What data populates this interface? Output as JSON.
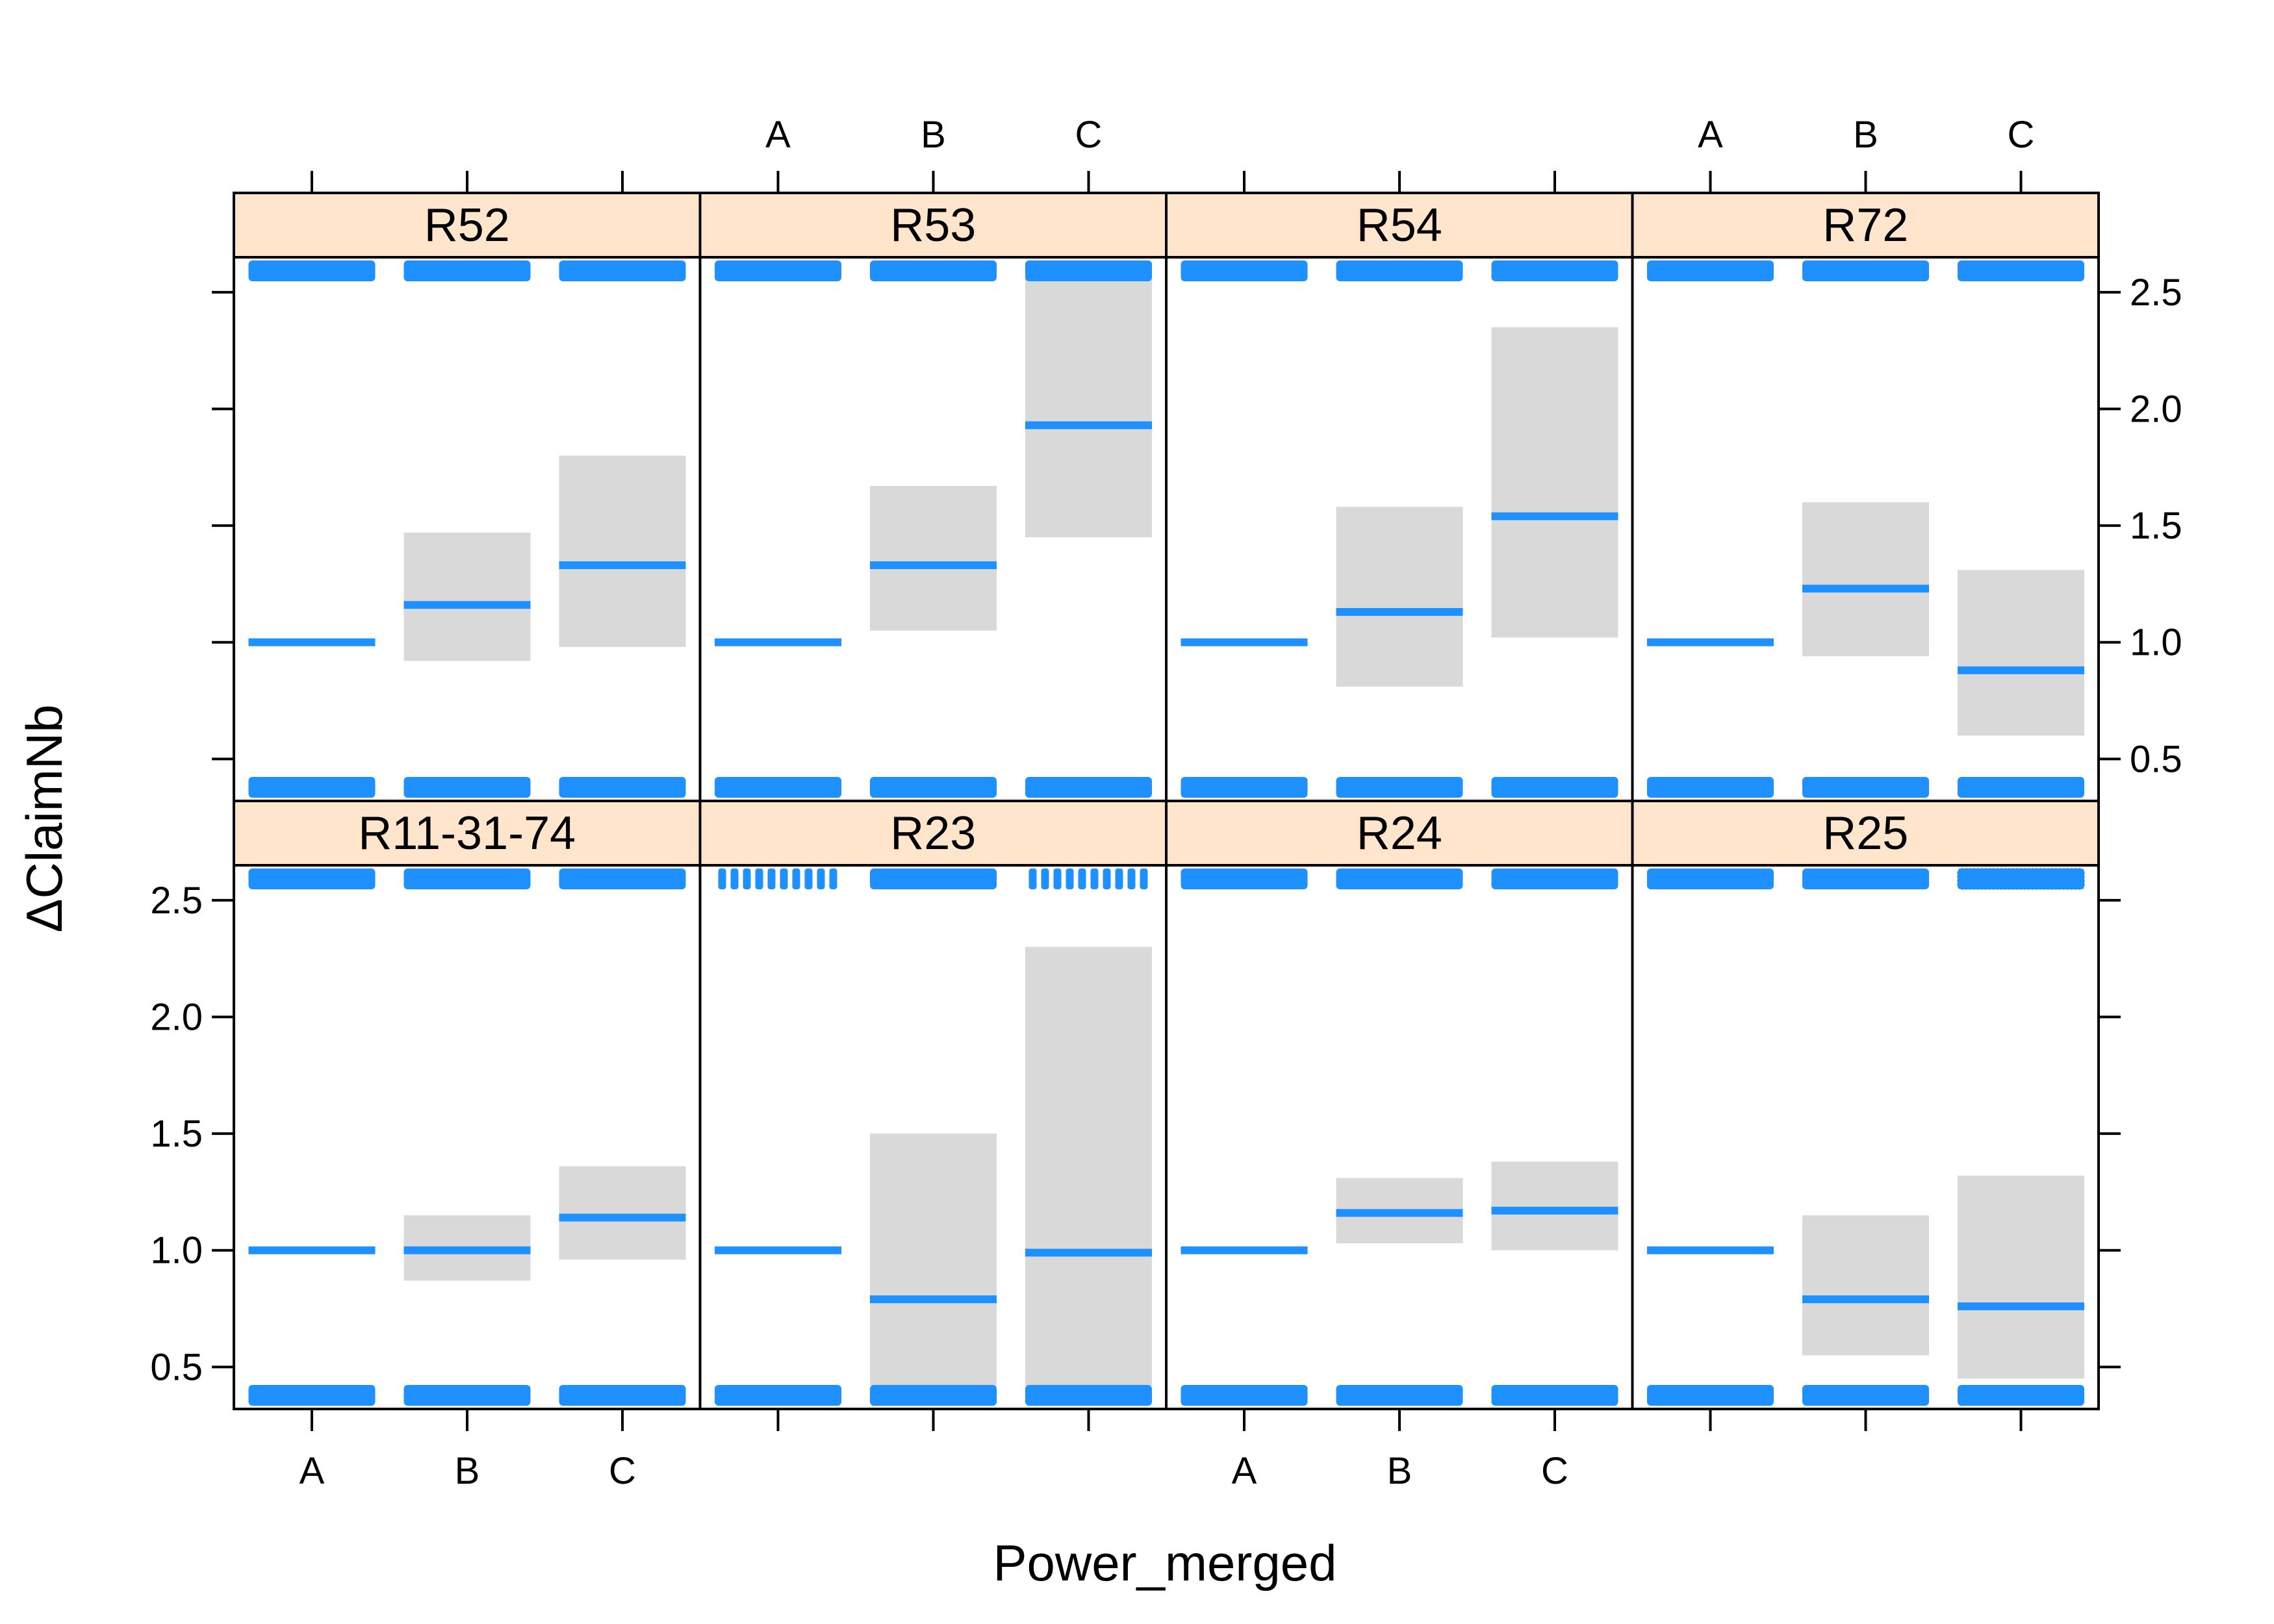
{
  "chart_data": {
    "type": "lattice-bar",
    "xlabel": "Power_merged",
    "ylabel": "ΔClaimNb",
    "ylim": [
      0.32,
      2.65
    ],
    "y_ticks": [
      0.5,
      1.0,
      1.5,
      2.0,
      2.5
    ],
    "y_tick_labels": [
      "0.5",
      "1.0",
      "1.5",
      "2.0",
      "2.5"
    ],
    "categories": [
      "A",
      "B",
      "C"
    ],
    "colors": {
      "estimate_line": "#1e90ff",
      "interval_band": "#d9d9d9",
      "strip_background": "#ffe5cc",
      "rug": "#1e90ff"
    },
    "panels": [
      {
        "label": "R11-31-74",
        "estimate": [
          1.0,
          1.0,
          1.14
        ],
        "lower": [
          null,
          0.87,
          0.96
        ],
        "upper": [
          null,
          1.15,
          1.36
        ],
        "rug_style": [
          "solid",
          "solid",
          "solid"
        ]
      },
      {
        "label": "R23",
        "estimate": [
          1.0,
          0.79,
          0.99
        ],
        "lower": [
          null,
          0.42,
          0.42
        ],
        "upper": [
          null,
          1.5,
          2.3
        ],
        "rug_style": [
          "dashed",
          "solid",
          "dashed"
        ]
      },
      {
        "label": "R24",
        "estimate": [
          1.0,
          1.16,
          1.17
        ],
        "lower": [
          null,
          1.03,
          1.0
        ],
        "upper": [
          null,
          1.31,
          1.38
        ],
        "rug_style": [
          "solid",
          "solid",
          "solid"
        ]
      },
      {
        "label": "R25",
        "estimate": [
          1.0,
          0.79,
          0.76
        ],
        "lower": [
          null,
          0.55,
          0.45
        ],
        "upper": [
          null,
          1.15,
          1.32
        ],
        "rug_style": [
          "solid",
          "solid",
          "fine"
        ]
      },
      {
        "label": "R52",
        "estimate": [
          1.0,
          1.16,
          1.33
        ],
        "lower": [
          null,
          0.92,
          0.98
        ],
        "upper": [
          null,
          1.47,
          1.8
        ],
        "rug_style": [
          "solid",
          "solid",
          "solid"
        ]
      },
      {
        "label": "R53",
        "estimate": [
          1.0,
          1.33,
          1.93
        ],
        "lower": [
          null,
          1.05,
          1.45
        ],
        "upper": [
          null,
          1.67,
          2.56
        ],
        "rug_style": [
          "solid",
          "solid",
          "solid"
        ]
      },
      {
        "label": "R54",
        "estimate": [
          1.0,
          1.13,
          1.54
        ],
        "lower": [
          null,
          0.81,
          1.02
        ],
        "upper": [
          null,
          1.58,
          2.35
        ],
        "rug_style": [
          "solid",
          "solid",
          "solid"
        ]
      },
      {
        "label": "R72",
        "estimate": [
          1.0,
          1.23,
          0.88
        ],
        "lower": [
          null,
          0.94,
          0.6
        ],
        "upper": [
          null,
          1.6,
          1.31
        ],
        "rug_style": [
          "solid",
          "solid",
          "solid"
        ]
      }
    ]
  }
}
